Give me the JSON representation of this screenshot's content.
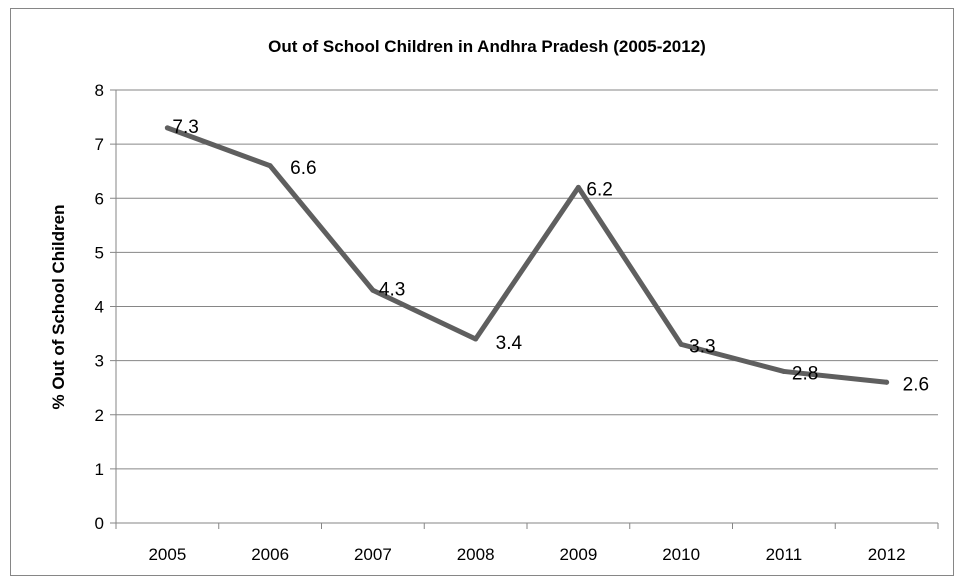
{
  "chart_data": {
    "type": "line",
    "title": "Out of School Children in Andhra Pradesh (2005-2012)",
    "xlabel": "",
    "ylabel": "% Out of School Children",
    "categories": [
      "2005",
      "2006",
      "2007",
      "2008",
      "2009",
      "2010",
      "2011",
      "2012"
    ],
    "series": [
      {
        "values": [
          7.3,
          6.6,
          4.3,
          3.4,
          6.2,
          3.3,
          2.8,
          2.6
        ]
      }
    ],
    "data_labels": [
      "7.3",
      "6.6",
      "4.3",
      "3.4",
      "6.2",
      "3.3",
      "2.8",
      "2.6"
    ],
    "ylim": [
      0,
      8
    ],
    "yticks": [
      "0",
      "1",
      "2",
      "3",
      "4",
      "5",
      "6",
      "7",
      "8"
    ],
    "grid": true,
    "legend": "none",
    "line_color": "#5f5f5f"
  }
}
